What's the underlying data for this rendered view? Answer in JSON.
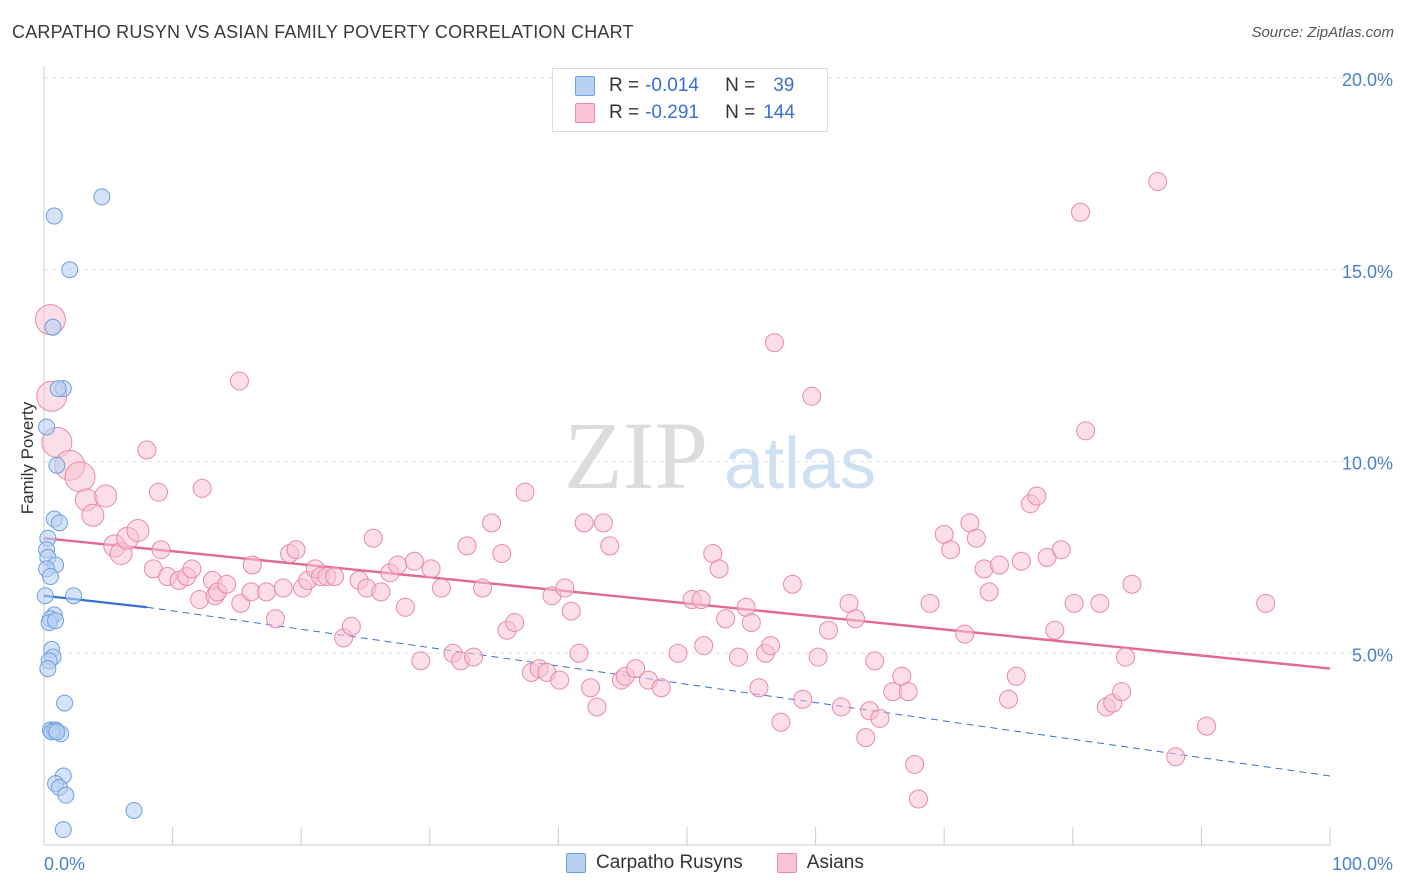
{
  "title": "CARPATHO RUSYN VS ASIAN FAMILY POVERTY CORRELATION CHART",
  "source": "Source: ZipAtlas.com",
  "watermark": {
    "zip": "ZIP",
    "atlas": "atlas"
  },
  "legend": {
    "series": [
      {
        "name": "Carpatho Rusyns",
        "r_label": "R =",
        "r_value": "-0.014",
        "n_label": "N =",
        "n_value": "39",
        "fill": "#b8d0f2",
        "stroke": "#6f9fe0"
      },
      {
        "name": "Asians",
        "r_label": "R =",
        "r_value": "-0.291",
        "n_label": "N =",
        "n_value": "144",
        "fill": "#f8c3d3",
        "stroke": "#e88aa8"
      }
    ]
  },
  "chart_data": {
    "type": "scatter",
    "title": "CARPATHO RUSYN VS ASIAN FAMILY POVERTY CORRELATION CHART",
    "xlabel": "",
    "ylabel": "Family Poverty",
    "xlim": [
      0,
      100
    ],
    "ylim": [
      0,
      20
    ],
    "x_tick_labels": [
      "0.0%",
      "100.0%"
    ],
    "y_ticks": [
      5,
      10,
      15,
      20
    ],
    "y_tick_labels": [
      "5.0%",
      "10.0%",
      "15.0%",
      "20.0%"
    ],
    "grid": "horizontal-dashed",
    "colors": {
      "blue_fill": "#b8d0f2",
      "blue_stroke": "#6f9fe0",
      "pink_fill": "#f8c3d3",
      "pink_stroke": "#e88aa8",
      "blue_line": "#3a6fd0",
      "pink_line": "#e06a93",
      "axis_label": "#4a7fd0"
    },
    "series": [
      {
        "name": "Carpatho Rusyns",
        "trend": {
          "solid": [
            [
              0,
              6.5
            ],
            [
              8,
              6.2
            ]
          ],
          "dashed": [
            [
              8,
              6.2
            ],
            [
              100,
              1.8
            ]
          ]
        },
        "points": [
          [
            4.5,
            16.9
          ],
          [
            0.8,
            16.4
          ],
          [
            2.0,
            15.0
          ],
          [
            0.7,
            13.5
          ],
          [
            1.5,
            11.9
          ],
          [
            1.1,
            11.9
          ],
          [
            0.2,
            10.9
          ],
          [
            1.0,
            9.9
          ],
          [
            0.8,
            8.5
          ],
          [
            1.2,
            8.4
          ],
          [
            0.3,
            8.0
          ],
          [
            0.2,
            7.7
          ],
          [
            0.3,
            7.5
          ],
          [
            0.9,
            7.3
          ],
          [
            0.2,
            7.2
          ],
          [
            0.1,
            6.5
          ],
          [
            2.3,
            6.5
          ],
          [
            0.8,
            6.0
          ],
          [
            0.5,
            5.9
          ],
          [
            0.6,
            5.1
          ],
          [
            0.7,
            4.9
          ],
          [
            0.4,
            4.8
          ],
          [
            0.3,
            4.6
          ],
          [
            1.6,
            3.7
          ],
          [
            0.5,
            3.0
          ],
          [
            0.8,
            3.0
          ],
          [
            0.9,
            3.0
          ],
          [
            1.3,
            2.9
          ],
          [
            1.5,
            1.8
          ],
          [
            0.9,
            1.6
          ],
          [
            1.2,
            1.5
          ],
          [
            1.7,
            1.3
          ],
          [
            7.0,
            0.9
          ],
          [
            1.5,
            0.4
          ],
          [
            0.6,
            2.95
          ],
          [
            1.0,
            2.95
          ],
          [
            0.4,
            5.8
          ],
          [
            0.9,
            5.85
          ],
          [
            0.5,
            7.0
          ]
        ]
      },
      {
        "name": "Asians",
        "trend": {
          "solid": [
            [
              0,
              8.0
            ],
            [
              100,
              4.6
            ]
          ]
        },
        "points": [
          [
            0.5,
            13.7,
            2
          ],
          [
            0.6,
            11.7,
            2
          ],
          [
            1.0,
            10.5,
            2
          ],
          [
            2.0,
            9.9,
            2
          ],
          [
            2.8,
            9.6,
            1.5
          ],
          [
            3.3,
            9.0,
            1
          ],
          [
            3.8,
            8.6,
            1
          ],
          [
            4.8,
            9.1,
            1
          ],
          [
            5.5,
            7.8,
            1
          ],
          [
            6.0,
            7.6,
            1
          ],
          [
            6.5,
            8.0,
            1
          ],
          [
            7.3,
            8.2,
            1
          ],
          [
            8.0,
            10.3,
            0
          ],
          [
            8.9,
            9.2,
            0
          ],
          [
            8.5,
            7.2,
            0
          ],
          [
            9.1,
            7.7,
            0
          ],
          [
            9.6,
            7.0,
            0
          ],
          [
            10.5,
            6.9,
            0
          ],
          [
            11.1,
            7.0,
            0
          ],
          [
            11.5,
            7.2,
            0
          ],
          [
            12.1,
            6.4,
            0
          ],
          [
            12.3,
            9.3,
            0
          ],
          [
            13.3,
            6.5,
            0
          ],
          [
            13.1,
            6.9,
            0
          ],
          [
            13.5,
            6.6,
            0
          ],
          [
            14.2,
            6.8,
            0
          ],
          [
            15.3,
            6.3,
            0
          ],
          [
            15.2,
            12.1,
            0
          ],
          [
            16.1,
            6.6,
            0
          ],
          [
            16.2,
            7.3,
            0
          ],
          [
            17.3,
            6.6,
            0
          ],
          [
            18.0,
            5.9,
            0
          ],
          [
            18.6,
            6.7,
            0
          ],
          [
            19.1,
            7.6,
            0
          ],
          [
            19.6,
            7.7,
            0
          ],
          [
            20.1,
            6.7,
            0
          ],
          [
            20.5,
            6.9,
            0
          ],
          [
            21.1,
            7.2,
            0
          ],
          [
            21.5,
            7.0,
            0
          ],
          [
            22.0,
            7.0,
            0
          ],
          [
            22.6,
            7.0,
            0
          ],
          [
            23.3,
            5.4,
            0
          ],
          [
            23.9,
            5.7,
            0
          ],
          [
            24.5,
            6.9,
            0
          ],
          [
            25.1,
            6.7,
            0
          ],
          [
            25.6,
            8.0,
            0
          ],
          [
            26.2,
            6.6,
            0
          ],
          [
            26.9,
            7.1,
            0
          ],
          [
            27.5,
            7.3,
            0
          ],
          [
            28.1,
            6.2,
            0
          ],
          [
            28.8,
            7.4,
            0
          ],
          [
            29.3,
            4.8,
            0
          ],
          [
            30.1,
            7.2,
            0
          ],
          [
            30.9,
            6.7,
            0
          ],
          [
            31.8,
            5.0,
            0
          ],
          [
            32.4,
            4.8,
            0
          ],
          [
            32.9,
            7.8,
            0
          ],
          [
            33.4,
            4.9,
            0
          ],
          [
            34.1,
            6.7,
            0
          ],
          [
            34.8,
            8.4,
            0
          ],
          [
            35.6,
            7.6,
            0
          ],
          [
            36.0,
            5.6,
            0
          ],
          [
            36.6,
            5.8,
            0
          ],
          [
            37.4,
            9.2,
            0
          ],
          [
            37.9,
            4.5,
            0
          ],
          [
            38.5,
            4.6,
            0
          ],
          [
            39.1,
            4.5,
            0
          ],
          [
            39.5,
            6.5,
            0
          ],
          [
            40.1,
            4.3,
            0
          ],
          [
            40.5,
            6.7,
            0
          ],
          [
            41.0,
            6.1,
            0
          ],
          [
            41.6,
            5.0,
            0
          ],
          [
            42.0,
            8.4,
            0
          ],
          [
            42.5,
            4.1,
            0
          ],
          [
            43.0,
            3.6,
            0
          ],
          [
            43.5,
            8.4,
            0
          ],
          [
            44.0,
            7.8,
            0
          ],
          [
            44.9,
            4.3,
            0
          ],
          [
            45.2,
            4.4,
            0
          ],
          [
            46.0,
            4.6,
            0
          ],
          [
            47.0,
            4.3,
            0
          ],
          [
            48.0,
            4.1,
            0
          ],
          [
            49.3,
            5.0,
            0
          ],
          [
            50.4,
            6.4,
            0
          ],
          [
            51.1,
            6.4,
            0
          ],
          [
            51.3,
            5.2,
            0
          ],
          [
            52.0,
            7.6,
            0
          ],
          [
            52.5,
            7.2,
            0
          ],
          [
            53.0,
            5.9,
            0
          ],
          [
            54.0,
            4.9,
            0
          ],
          [
            54.6,
            6.2,
            0
          ],
          [
            55.0,
            5.8,
            0
          ],
          [
            55.6,
            4.1,
            0
          ],
          [
            56.1,
            5.0,
            0
          ],
          [
            56.5,
            5.2,
            0
          ],
          [
            57.3,
            3.2,
            0
          ],
          [
            58.2,
            6.8,
            0
          ],
          [
            59.0,
            3.8,
            0
          ],
          [
            59.7,
            11.7,
            0
          ],
          [
            60.2,
            4.9,
            0
          ],
          [
            61.0,
            5.6,
            0
          ],
          [
            62.0,
            3.6,
            0
          ],
          [
            62.6,
            6.3,
            0
          ],
          [
            63.1,
            5.9,
            0
          ],
          [
            63.9,
            2.8,
            0
          ],
          [
            64.2,
            3.5,
            0
          ],
          [
            64.6,
            4.8,
            0
          ],
          [
            65.0,
            3.3,
            0
          ],
          [
            66.0,
            4.0,
            0
          ],
          [
            66.7,
            4.4,
            0
          ],
          [
            67.2,
            4.0,
            0
          ],
          [
            68.0,
            1.2,
            0
          ],
          [
            67.7,
            2.1,
            0
          ],
          [
            68.9,
            6.3,
            0
          ],
          [
            70.0,
            8.1,
            0
          ],
          [
            70.5,
            7.7,
            0
          ],
          [
            71.6,
            5.5,
            0
          ],
          [
            72.0,
            8.4,
            0
          ],
          [
            72.5,
            8.0,
            0
          ],
          [
            73.1,
            7.2,
            0
          ],
          [
            73.5,
            6.6,
            0
          ],
          [
            74.3,
            7.3,
            0
          ],
          [
            75.0,
            3.8,
            0
          ],
          [
            75.6,
            4.4,
            0
          ],
          [
            76.0,
            7.4,
            0
          ],
          [
            76.7,
            8.9,
            0
          ],
          [
            77.2,
            9.1,
            0
          ],
          [
            78.0,
            7.5,
            0
          ],
          [
            78.6,
            5.6,
            0
          ],
          [
            79.1,
            7.7,
            0
          ],
          [
            80.1,
            6.3,
            0
          ],
          [
            80.6,
            16.5,
            0
          ],
          [
            81.0,
            10.8,
            0
          ],
          [
            82.1,
            6.3,
            0
          ],
          [
            82.6,
            3.6,
            0
          ],
          [
            83.1,
            3.7,
            0
          ],
          [
            83.8,
            4.0,
            0
          ],
          [
            84.1,
            4.9,
            0
          ],
          [
            84.6,
            6.8,
            0
          ],
          [
            86.6,
            17.3,
            0
          ],
          [
            88.0,
            2.3,
            0
          ],
          [
            90.4,
            3.1,
            0
          ],
          [
            95.0,
            6.3,
            0
          ],
          [
            56.8,
            13.1,
            0
          ]
        ]
      }
    ]
  }
}
